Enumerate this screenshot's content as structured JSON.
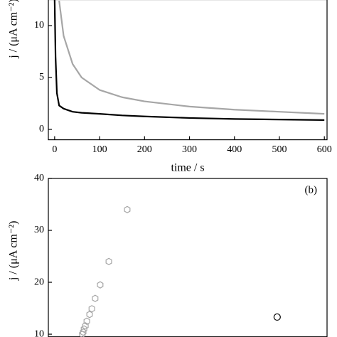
{
  "chart_data": [
    {
      "type": "line",
      "x_label": "time / s",
      "y_label": "j / (μA cm⁻²)",
      "x": [
        0,
        2,
        5,
        10,
        20,
        40,
        60,
        100,
        150,
        200,
        300,
        400,
        500,
        600
      ],
      "series": [
        {
          "name": "gray",
          "color": "#a6a6a6",
          "values": [
            null,
            null,
            null,
            12.4,
            9,
            6.3,
            5,
            3.8,
            3.1,
            2.7,
            2.2,
            1.9,
            1.7,
            1.5
          ]
        },
        {
          "name": "black",
          "color": "#000000",
          "values": [
            12.5,
            7,
            3.5,
            2.3,
            2.0,
            1.7,
            1.6,
            1.5,
            1.35,
            1.25,
            1.1,
            1.0,
            0.95,
            0.9
          ]
        }
      ],
      "xlim": [
        -14,
        606
      ],
      "ylim": [
        -1,
        12.5
      ],
      "xticks": [
        0,
        100,
        200,
        300,
        400,
        500,
        600
      ],
      "yticks": [
        0,
        5,
        10
      ]
    },
    {
      "type": "scatter",
      "y_label": "j / (μA cm⁻²)",
      "annotation": "(b)",
      "series": [
        {
          "name": "hexagons",
          "color": "#a6a6a6",
          "marker": "hexagon",
          "x": [
            28.3,
            21.7,
            18.6,
            16.8,
            15.6,
            14.8,
            13.8,
            13.3,
            12.8,
            12.5,
            12.2
          ],
          "values": [
            34.0,
            24.0,
            19.5,
            16.9,
            14.9,
            13.8,
            12.5,
            11.6,
            11.0,
            10.4,
            10.0
          ]
        },
        {
          "name": "circles",
          "color": "#000000",
          "marker": "circle",
          "x": [
            82.1
          ],
          "values": [
            13.3
          ]
        }
      ],
      "xlim": [
        0,
        100
      ],
      "ylim": [
        9.5,
        40
      ],
      "yticks": [
        10,
        20,
        30,
        40
      ]
    }
  ]
}
